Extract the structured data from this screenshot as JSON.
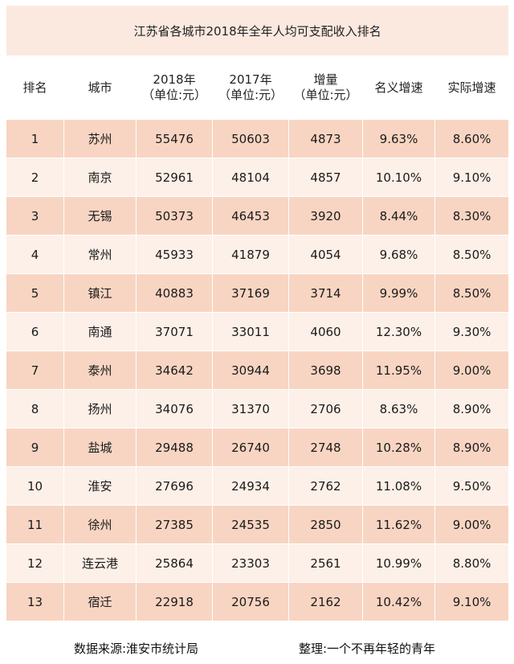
{
  "chart_data": {
    "type": "table",
    "title": "江苏省各城市2018年全年人均可支配收入排名",
    "columns": [
      "排名",
      "城市",
      "2018年\n（单位:元）",
      "2017年\n（单位:元）",
      "增量\n（单位:元）",
      "名义增速",
      "实际增速"
    ],
    "rows": [
      [
        "1",
        "苏州",
        "55476",
        "50603",
        "4873",
        "9.63%",
        "8.60%"
      ],
      [
        "2",
        "南京",
        "52961",
        "48104",
        "4857",
        "10.10%",
        "9.10%"
      ],
      [
        "3",
        "无锡",
        "50373",
        "46453",
        "3920",
        "8.44%",
        "8.30%"
      ],
      [
        "4",
        "常州",
        "45933",
        "41879",
        "4054",
        "9.68%",
        "8.50%"
      ],
      [
        "5",
        "镇江",
        "40883",
        "37169",
        "3714",
        "9.99%",
        "8.50%"
      ],
      [
        "6",
        "南通",
        "37071",
        "33011",
        "4060",
        "12.30%",
        "9.30%"
      ],
      [
        "7",
        "泰州",
        "34642",
        "30944",
        "3698",
        "11.95%",
        "9.00%"
      ],
      [
        "8",
        "扬州",
        "34076",
        "31370",
        "2706",
        "8.63%",
        "8.90%"
      ],
      [
        "9",
        "盐城",
        "29488",
        "26740",
        "2748",
        "10.28%",
        "8.90%"
      ],
      [
        "10",
        "淮安",
        "27696",
        "24934",
        "2762",
        "11.08%",
        "9.50%"
      ],
      [
        "11",
        "徐州",
        "27385",
        "24535",
        "2850",
        "11.62%",
        "9.00%"
      ],
      [
        "12",
        "连云港",
        "25864",
        "23303",
        "2561",
        "10.99%",
        "8.80%"
      ],
      [
        "13",
        "宿迁",
        "22918",
        "20756",
        "2162",
        "10.42%",
        "9.10%"
      ]
    ]
  },
  "footer": {
    "source": "数据来源:淮安市统计局",
    "organizer": "整理:一个不再年轻的青年"
  },
  "colors": {
    "title_bg": "#fbe9df",
    "row_odd": "#f8d5c2",
    "row_even": "#fdf0e8"
  }
}
